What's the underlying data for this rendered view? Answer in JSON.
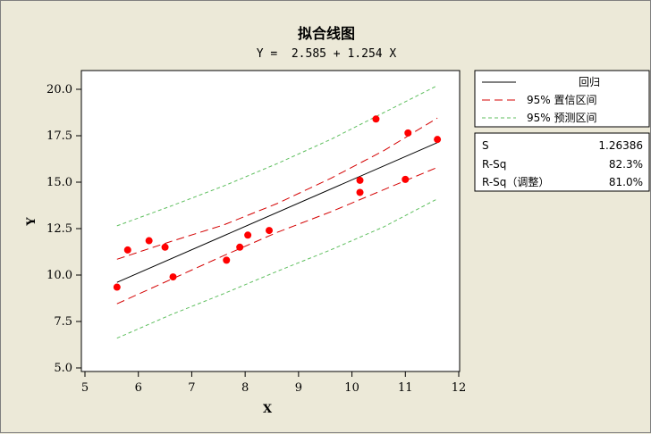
{
  "chart_data": {
    "type": "scatter",
    "title": "拟合线图",
    "subtitle": "Y =  2.585 + 1.254 X",
    "xlabel": "X",
    "ylabel": "Y",
    "xlim": [
      5,
      12
    ],
    "ylim": [
      5.0,
      20.0
    ],
    "x_ticks": [
      5,
      6,
      7,
      8,
      9,
      10,
      11,
      12
    ],
    "y_ticks": [
      "5.0",
      "7.5",
      "10.0",
      "12.5",
      "15.0",
      "17.5",
      "20.0"
    ],
    "grid": false,
    "fit": {
      "intercept": 2.585,
      "slope": 1.254
    },
    "points": [
      {
        "x": 5.6,
        "y": 9.35
      },
      {
        "x": 5.8,
        "y": 11.35
      },
      {
        "x": 6.2,
        "y": 11.85
      },
      {
        "x": 6.5,
        "y": 11.5
      },
      {
        "x": 6.65,
        "y": 9.9
      },
      {
        "x": 7.65,
        "y": 10.8
      },
      {
        "x": 7.9,
        "y": 11.5
      },
      {
        "x": 8.05,
        "y": 12.15
      },
      {
        "x": 8.45,
        "y": 12.4
      },
      {
        "x": 10.15,
        "y": 15.1
      },
      {
        "x": 10.15,
        "y": 14.45
      },
      {
        "x": 10.45,
        "y": 18.4
      },
      {
        "x": 11.0,
        "y": 15.15
      },
      {
        "x": 11.05,
        "y": 17.65
      },
      {
        "x": 11.6,
        "y": 17.3
      }
    ],
    "ci_upper": [
      [
        5.6,
        10.85
      ],
      [
        6.6,
        11.8
      ],
      [
        7.6,
        12.7
      ],
      [
        8.6,
        13.85
      ],
      [
        9.6,
        15.2
      ],
      [
        10.6,
        16.7
      ],
      [
        11.6,
        18.45
      ]
    ],
    "ci_lower": [
      [
        5.6,
        8.45
      ],
      [
        6.6,
        9.75
      ],
      [
        7.6,
        11.05
      ],
      [
        8.6,
        12.3
      ],
      [
        9.6,
        13.4
      ],
      [
        10.6,
        14.6
      ],
      [
        11.6,
        15.8
      ]
    ],
    "pi_upper": [
      [
        5.6,
        12.65
      ],
      [
        6.6,
        13.7
      ],
      [
        7.6,
        14.8
      ],
      [
        8.6,
        16.0
      ],
      [
        9.6,
        17.3
      ],
      [
        10.6,
        18.75
      ],
      [
        11.6,
        20.2
      ]
    ],
    "pi_lower": [
      [
        5.6,
        6.6
      ],
      [
        6.6,
        7.85
      ],
      [
        7.6,
        9.0
      ],
      [
        8.6,
        10.2
      ],
      [
        9.6,
        11.35
      ],
      [
        10.6,
        12.6
      ],
      [
        11.6,
        14.1
      ]
    ],
    "legend": {
      "placement": "right",
      "items": [
        {
          "label": "回归",
          "style": "solid",
          "color": "#000000"
        },
        {
          "label": "95% 置信区间",
          "style": "dashed",
          "color": "#d40000"
        },
        {
          "label": "95% 预测区间",
          "style": "dashed",
          "color": "#5fbf5f"
        }
      ]
    },
    "stats": [
      {
        "label": "S",
        "value": "1.26386"
      },
      {
        "label": "R-Sq",
        "value": "82.3%"
      },
      {
        "label": "R-Sq（调整）",
        "value": "81.0%"
      }
    ],
    "colors": {
      "points": "#ff0000",
      "fit": "#000000",
      "ci": "#d40000",
      "pi": "#5fbf5f"
    }
  }
}
